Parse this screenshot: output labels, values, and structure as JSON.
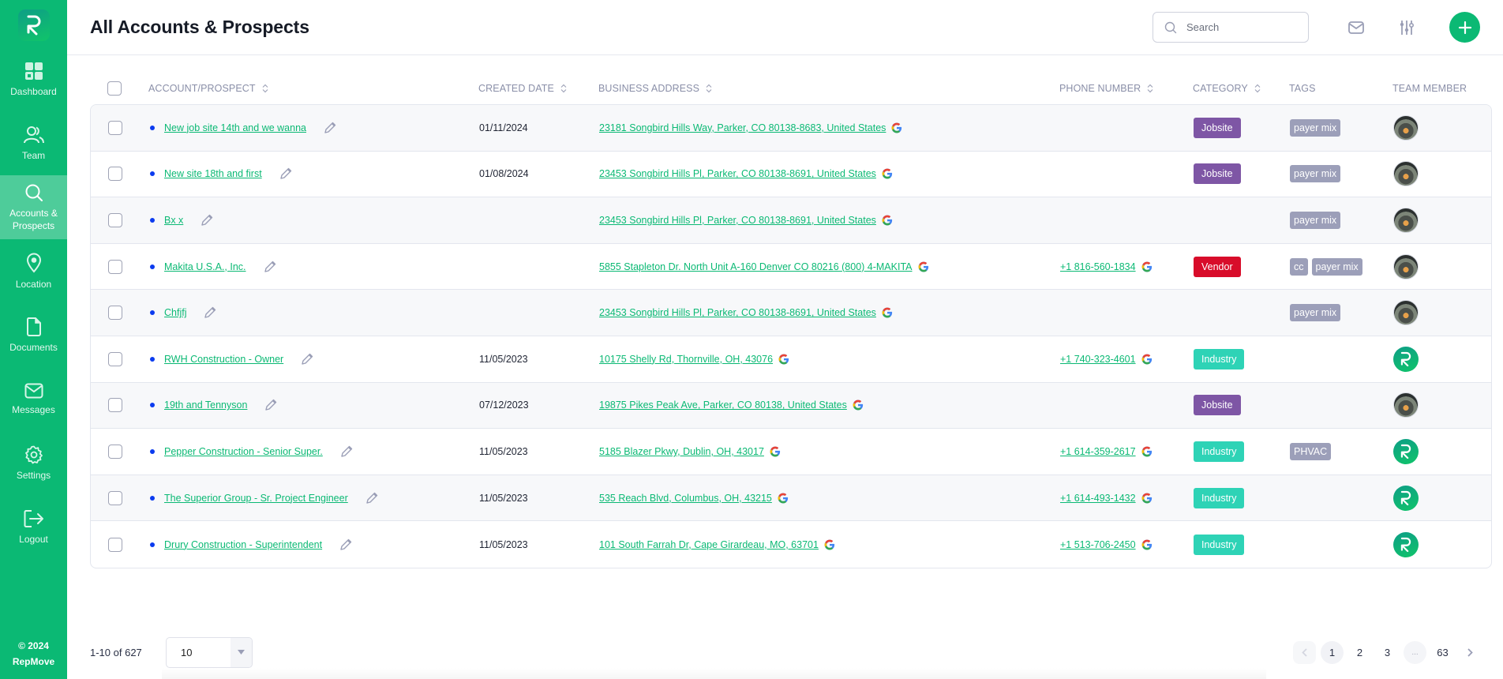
{
  "sidebar": {
    "items": [
      {
        "label": "Dashboard",
        "icon": "dashboard-icon",
        "active": false
      },
      {
        "label": "Team",
        "icon": "team-icon",
        "active": false
      },
      {
        "label": "Accounts &\nProspects",
        "label_line1": "Accounts &",
        "label_line2": "Prospects",
        "icon": "search-icon",
        "active": true
      },
      {
        "label": "Location",
        "icon": "location-pin-icon",
        "active": false
      },
      {
        "label": "Documents",
        "icon": "document-icon",
        "active": false
      },
      {
        "label": "Messages",
        "icon": "mail-icon",
        "active": false
      },
      {
        "label": "Settings",
        "icon": "gear-icon",
        "active": false
      },
      {
        "label": "Logout",
        "icon": "logout-icon",
        "active": false
      }
    ],
    "footer_line1": "© 2024",
    "footer_line2": "RepMove"
  },
  "header": {
    "title": "All Accounts & Prospects",
    "search_placeholder": "Search",
    "search_value": ""
  },
  "colors": {
    "brand": "#0bb974",
    "jobsite": "#7e56a5",
    "vendor": "#d80c2a",
    "industry": "#2ed3b6",
    "tag": "#9c9fb9",
    "status_dot": "#0b3bef"
  },
  "table": {
    "columns": [
      {
        "label": "ACCOUNT/PROSPECT",
        "sortable": true
      },
      {
        "label": "CREATED DATE",
        "sortable": true
      },
      {
        "label": "BUSINESS ADDRESS",
        "sortable": true
      },
      {
        "label": "PHONE NUMBER",
        "sortable": true
      },
      {
        "label": "CATEGORY",
        "sortable": true
      },
      {
        "label": "TAGS",
        "sortable": false
      },
      {
        "label": "TEAM MEMBER",
        "sortable": false
      }
    ],
    "rows": [
      {
        "name": "New job site 14th and we wanna",
        "created": "01/11/2024",
        "address": "23181 Songbird Hills Way, Parker, CO 80138-8683, United States",
        "phone": "",
        "category": "Jobsite",
        "tags": [
          "payer mix"
        ],
        "team_member": "photo"
      },
      {
        "name": "New site 18th and first",
        "created": "01/08/2024",
        "address": "23453 Songbird Hills Pl, Parker, CO 80138-8691, United States",
        "phone": "",
        "category": "Jobsite",
        "tags": [
          "payer mix"
        ],
        "team_member": "photo"
      },
      {
        "name": "Bx x",
        "created": "",
        "address": "23453 Songbird Hills Pl, Parker, CO 80138-8691, United States",
        "phone": "",
        "category": "",
        "tags": [
          "payer mix"
        ],
        "team_member": "photo"
      },
      {
        "name": "Makita U.S.A., Inc.",
        "created": "",
        "address": "5855 Stapleton Dr. North Unit A-160 Denver CO 80216 (800) 4-MAKITA",
        "phone": "+1 816-560-1834",
        "category": "Vendor",
        "tags": [
          "cc",
          "payer mix"
        ],
        "team_member": "photo"
      },
      {
        "name": "Chfjfj",
        "created": "",
        "address": "23453 Songbird Hills Pl, Parker, CO 80138-8691, United States",
        "phone": "",
        "category": "",
        "tags": [
          "payer mix"
        ],
        "team_member": "photo"
      },
      {
        "name": "RWH Construction - Owner",
        "created": "11/05/2023",
        "address": "10175 Shelly Rd, Thornville, OH, 43076",
        "phone": "+1 740-323-4601",
        "category": "Industry",
        "tags": [],
        "team_member": "brand"
      },
      {
        "name": "19th and Tennyson",
        "created": "07/12/2023",
        "address": "19875 Pikes Peak Ave, Parker, CO 80138, United States",
        "phone": "",
        "category": "Jobsite",
        "tags": [],
        "team_member": "photo"
      },
      {
        "name": "Pepper Construction - Senior Super.",
        "created": "11/05/2023",
        "address": "5185 Blazer Pkwy, Dublin, OH, 43017",
        "phone": "+1 614-359-2617",
        "category": "Industry",
        "tags": [
          "PHVAC"
        ],
        "team_member": "brand"
      },
      {
        "name": "The Superior Group - Sr. Project Engineer",
        "created": "11/05/2023",
        "address": "535 Reach Blvd, Columbus, OH, 43215",
        "phone": "+1 614-493-1432",
        "category": "Industry",
        "tags": [],
        "team_member": "brand"
      },
      {
        "name": "Drury Construction - Superintendent",
        "created": "11/05/2023",
        "address": "101 South Farrah Dr, Cape Girardeau, MO, 63701",
        "phone": "+1 513-706-2450",
        "category": "Industry",
        "tags": [],
        "team_member": "brand"
      }
    ]
  },
  "pagination": {
    "range_text": "1-10 of 627",
    "per_page": "10",
    "pages": [
      "1",
      "2",
      "3",
      "...",
      "63"
    ],
    "current_page": "1"
  }
}
